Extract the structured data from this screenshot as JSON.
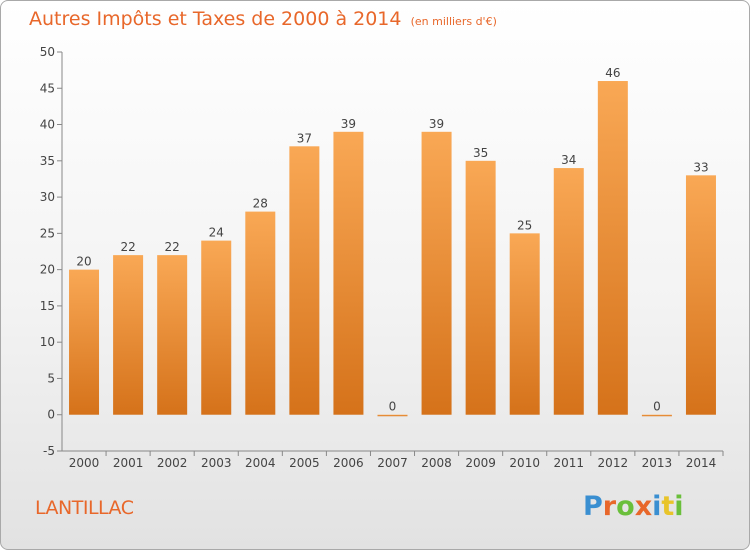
{
  "title": "Autres Impôts et Taxes de 2000 à 2014",
  "unit": "(en milliers d'€)",
  "commune": "LANTILLAC",
  "logo_text": "Proxiti",
  "logo_colors": [
    "#3a8fd1",
    "#e8672a",
    "#6abf3b",
    "#e8672a",
    "#3a8fd1",
    "#e8c42a",
    "#6abf3b"
  ],
  "colors": {
    "bar_top": "#f9a855",
    "bar_bottom": "#d5721a",
    "accent": "#e8672a"
  },
  "chart_data": {
    "type": "bar",
    "categories": [
      "2000",
      "2001",
      "2002",
      "2003",
      "2004",
      "2005",
      "2006",
      "2007",
      "2008",
      "2009",
      "2010",
      "2011",
      "2012",
      "2013",
      "2014"
    ],
    "values": [
      20,
      22,
      22,
      24,
      28,
      37,
      39,
      0,
      39,
      35,
      25,
      34,
      46,
      0,
      33
    ],
    "data_labels": [
      "20",
      "22",
      "22",
      "24",
      "28",
      "37",
      "39",
      "0",
      "39",
      "35",
      "25",
      "34",
      "46",
      "0",
      "33"
    ],
    "yticks": [
      "-5",
      "0",
      "5",
      "10",
      "15",
      "20",
      "25",
      "30",
      "35",
      "40",
      "45",
      "50"
    ],
    "ylim": [
      -5,
      50
    ],
    "grid": false
  }
}
